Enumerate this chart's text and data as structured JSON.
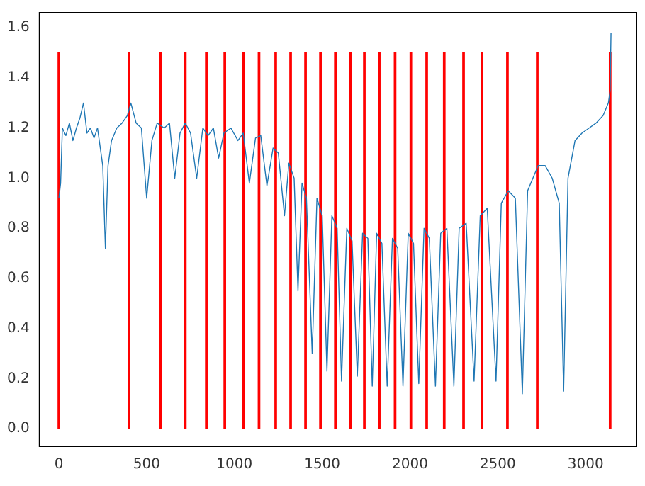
{
  "chart_data": {
    "type": "line",
    "grid": false,
    "xlim": [
      -110,
      3290
    ],
    "ylim": [
      -0.07,
      1.66
    ],
    "xticks": [
      0,
      500,
      1000,
      1500,
      2000,
      2500,
      3000
    ],
    "yticks": [
      {
        "value": 0,
        "label": "0.0"
      },
      {
        "value": 0.2,
        "label": "0.2"
      },
      {
        "value": 0.4,
        "label": "0.4"
      },
      {
        "value": 0.6,
        "label": "0.6"
      },
      {
        "value": 0.8,
        "label": "0.8"
      },
      {
        "value": 1,
        "label": "1.0"
      },
      {
        "value": 1.2,
        "label": "1.2"
      },
      {
        "value": 1.4,
        "label": "1.4"
      },
      {
        "value": 1.6,
        "label": "1.6"
      }
    ],
    "series": [
      {
        "color": "#1f77b4",
        "x": [
          0,
          10,
          20,
          40,
          60,
          80,
          100,
          120,
          140,
          160,
          180,
          200,
          220,
          240,
          250,
          265,
          280,
          300,
          330,
          360,
          390,
          410,
          440,
          470,
          500,
          530,
          560,
          600,
          630,
          660,
          690,
          720,
          750,
          785,
          820,
          850,
          880,
          910,
          940,
          980,
          1020,
          1050,
          1085,
          1120,
          1150,
          1185,
          1220,
          1250,
          1285,
          1310,
          1340,
          1362,
          1385,
          1410,
          1443,
          1470,
          1500,
          1527,
          1555,
          1585,
          1610,
          1640,
          1670,
          1700,
          1730,
          1760,
          1785,
          1810,
          1840,
          1870,
          1900,
          1930,
          1960,
          1990,
          2020,
          2050,
          2080,
          2110,
          2145,
          2175,
          2210,
          2250,
          2280,
          2320,
          2365,
          2400,
          2440,
          2490,
          2520,
          2560,
          2600,
          2640,
          2670,
          2700,
          2730,
          2770,
          2810,
          2850,
          2875,
          2900,
          2940,
          2980,
          3020,
          3060,
          3100,
          3130,
          3140,
          3145
        ],
        "values": [
          0.92,
          0.98,
          1.2,
          1.17,
          1.22,
          1.15,
          1.2,
          1.24,
          1.3,
          1.18,
          1.2,
          1.16,
          1.2,
          1.1,
          1.05,
          0.72,
          1.05,
          1.15,
          1.2,
          1.22,
          1.25,
          1.3,
          1.22,
          1.2,
          0.92,
          1.15,
          1.22,
          1.2,
          1.22,
          1.0,
          1.18,
          1.22,
          1.18,
          1.0,
          1.2,
          1.17,
          1.2,
          1.08,
          1.18,
          1.2,
          1.15,
          1.18,
          0.98,
          1.16,
          1.17,
          0.97,
          1.12,
          1.1,
          0.85,
          1.06,
          1.0,
          0.55,
          0.98,
          0.92,
          0.3,
          0.92,
          0.85,
          0.23,
          0.85,
          0.8,
          0.19,
          0.8,
          0.75,
          0.21,
          0.78,
          0.76,
          0.17,
          0.78,
          0.74,
          0.17,
          0.76,
          0.72,
          0.17,
          0.78,
          0.74,
          0.18,
          0.8,
          0.76,
          0.17,
          0.78,
          0.8,
          0.17,
          0.8,
          0.82,
          0.19,
          0.85,
          0.88,
          0.19,
          0.9,
          0.95,
          0.92,
          0.14,
          0.95,
          1.0,
          1.05,
          1.05,
          1.0,
          0.9,
          0.15,
          1.0,
          1.15,
          1.18,
          1.2,
          1.22,
          1.25,
          1.3,
          1.35,
          1.58
        ]
      },
      {
        "type": "bar",
        "color": "#ff0000",
        "x": [
          0,
          400,
          580,
          720,
          840,
          945,
          1050,
          1140,
          1235,
          1320,
          1405,
          1490,
          1575,
          1660,
          1740,
          1825,
          1915,
          2005,
          2095,
          2195,
          2305,
          2410,
          2555,
          2725,
          3140
        ],
        "values": [
          1.5,
          1.5,
          1.5,
          1.5,
          1.5,
          1.5,
          1.5,
          1.5,
          1.5,
          1.5,
          1.5,
          1.5,
          1.5,
          1.5,
          1.5,
          1.5,
          1.5,
          1.5,
          1.5,
          1.5,
          1.5,
          1.5,
          1.5,
          1.5,
          1.5
        ]
      }
    ]
  }
}
